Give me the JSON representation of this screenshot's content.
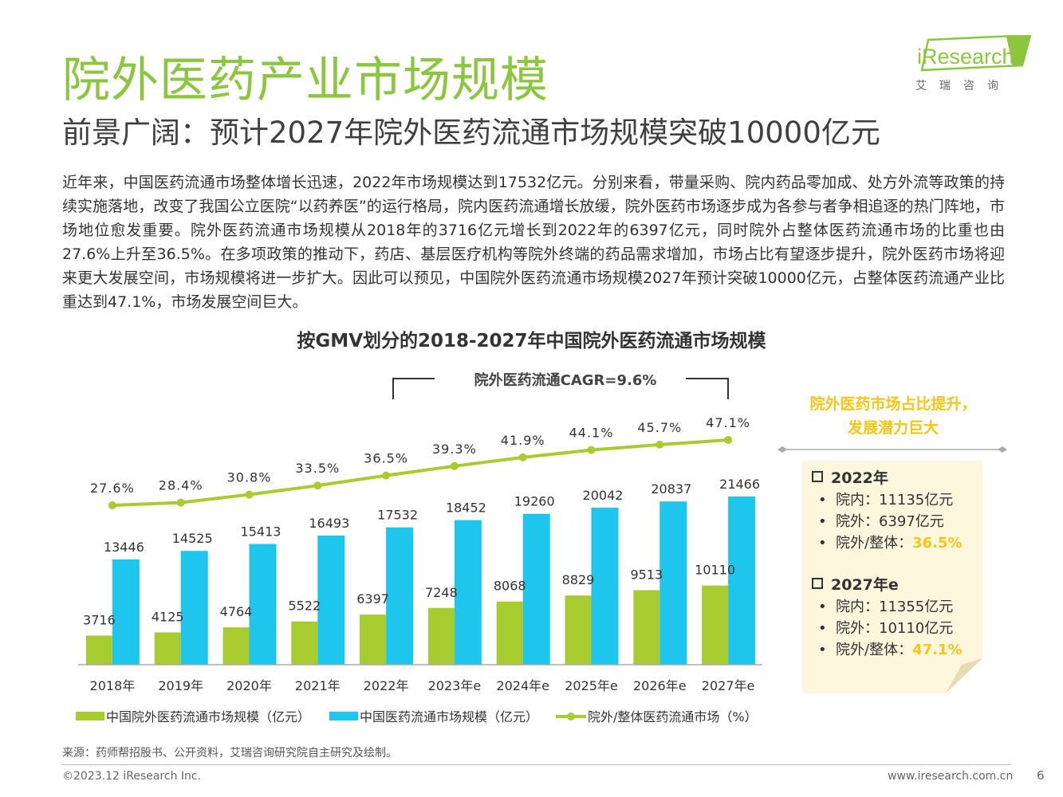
{
  "header": {
    "title": "院外医药产业市场规模",
    "subtitle": "前景广阔：预计2027年院外医药流通市场规模突破10000亿元"
  },
  "logo": {
    "name": "iResearch",
    "sub": "艾瑞咨询"
  },
  "body_text": "近年来，中国医药流通市场整体增长迅速，2022年市场规模达到17532亿元。分别来看，带量采购、院内药品零加成、处方外流等政策的持续实施落地，改变了我国公立医院“以药养医”的运行格局，院内医药流通增长放缓，院外医药市场逐步成为各参与者争相追逐的热门阵地，市场地位愈发重要。院外医药流通市场规模从2018年的3716亿元增长到2022年的6397亿元，同时院外占整体医药流通市场的比重也由27.6%上升至36.5%。在多项政策的推动下，药店、基层医疗机构等院外终端的药品需求增加，市场占比有望逐步提升，院外医药市场将迎来更大发展空间，市场规模将进一步扩大。因此可以预见，中国院外医药流通市场规模2027年预计突破10000亿元，占整体医药流通产业比重达到47.1%，市场发展空间巨大。",
  "chart_data": {
    "type": "bar",
    "title": "按GMV划分的2018-2027年中国院外医药流通市场规模",
    "categories": [
      "2018年",
      "2019年",
      "2020年",
      "2021年",
      "2022年",
      "2023年e",
      "2024年e",
      "2025年e",
      "2026年e",
      "2027年e"
    ],
    "series": [
      {
        "name": "中国院外医药流通市场规模（亿元）",
        "type": "bar",
        "color": "#a8cc2f",
        "values": [
          3716,
          4125,
          4764,
          5522,
          6397,
          7248,
          8068,
          8829,
          9513,
          10110
        ]
      },
      {
        "name": "中国医药流通市场规模（亿元）",
        "type": "bar",
        "color": "#1ec6ee",
        "values": [
          13446,
          14525,
          15413,
          16493,
          17532,
          18452,
          19260,
          20042,
          20837,
          21466
        ]
      },
      {
        "name": "院外/整体医药流通市场（%）",
        "type": "line",
        "color": "#a8cc2f",
        "values": [
          27.6,
          28.4,
          30.8,
          33.5,
          36.5,
          39.3,
          41.9,
          44.1,
          45.7,
          47.1
        ],
        "labels": [
          "27.6%",
          "28.4%",
          "30.8%",
          "33.5%",
          "36.5%",
          "39.3%",
          "41.9%",
          "44.1%",
          "45.7%",
          "47.1%"
        ]
      }
    ],
    "annotation": "院外医药流通CAGR=9.6%",
    "legend_position": "bottom",
    "grid": false
  },
  "side_note": {
    "line1": "院外医药市场占比提升，",
    "line2": "发展潜力巨大"
  },
  "info_box": {
    "y2022": {
      "heading": "2022年",
      "inner": "院内：11135亿元",
      "outer": "院外：6397亿元",
      "ratio_label": "院外/整体：",
      "ratio_value": "36.5%"
    },
    "y2027": {
      "heading": "2027年e",
      "inner": "院内：11355亿元",
      "outer": "院外：10110亿元",
      "ratio_label": "院外/整体：",
      "ratio_value": "47.1%"
    }
  },
  "footer": {
    "source": "来源：药师帮招股书、公开资料，艾瑞咨询研究院自主研究及绘制。",
    "copyright": "©2023.12 iResearch Inc.",
    "website": "www.iresearch.com.cn",
    "page": "6"
  }
}
